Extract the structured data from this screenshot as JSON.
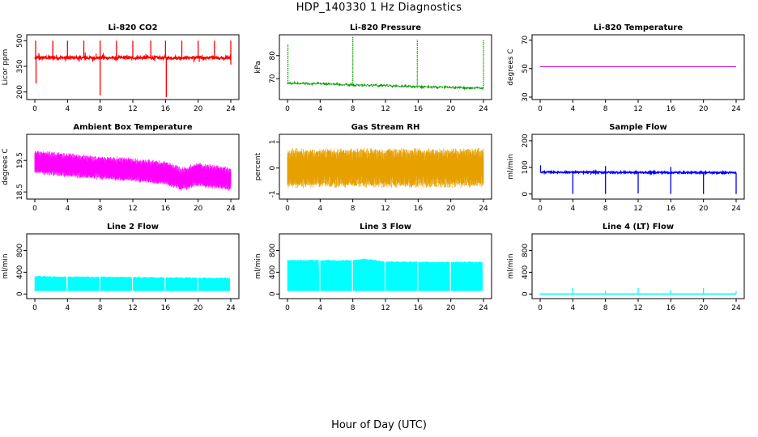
{
  "figure": {
    "title": "HDP_140330  1 Hz Diagnostics",
    "xlabel": "Hour of Day (UTC)"
  },
  "chart_data": [
    {
      "type": "line",
      "title": "Li-820 CO2",
      "ylabel": "Licor ppm",
      "color": "#ff0000",
      "xlim": [
        0,
        24
      ],
      "ylim": [
        170,
        520
      ],
      "xticks": [
        0,
        4,
        8,
        12,
        16,
        20,
        24
      ],
      "yticks": [
        200,
        350,
        500
      ],
      "baseline": 400,
      "noise": 8,
      "style": "spiky",
      "spikes_up": [
        [
          0.1,
          500
        ],
        [
          2.2,
          500
        ],
        [
          4.0,
          500
        ],
        [
          6.0,
          500
        ],
        [
          8.0,
          500
        ],
        [
          10.0,
          500
        ],
        [
          12.0,
          500
        ],
        [
          14.2,
          500
        ],
        [
          16.0,
          500
        ],
        [
          18.0,
          500
        ],
        [
          20.0,
          500
        ],
        [
          22.0,
          500
        ],
        [
          24.0,
          500
        ]
      ],
      "spikes_down": [
        [
          0.15,
          250
        ],
        [
          8.0,
          180
        ],
        [
          16.1,
          170
        ],
        [
          24.0,
          360
        ]
      ]
    },
    {
      "type": "line",
      "title": "Li-820 Pressure",
      "ylabel": "kPa",
      "color": "#00a000",
      "xlim": [
        0,
        24
      ],
      "ylim": [
        62,
        88
      ],
      "xticks": [
        0,
        4,
        8,
        12,
        16,
        20,
        24
      ],
      "yticks": [
        70,
        80
      ],
      "trend": [
        [
          0,
          68
        ],
        [
          4,
          67.8
        ],
        [
          8,
          67.3
        ],
        [
          12,
          67
        ],
        [
          16,
          66.5
        ],
        [
          20,
          66.2
        ],
        [
          24,
          66
        ]
      ],
      "noise": 0.3,
      "style": "dotted",
      "spikes_up": [
        [
          0.05,
          85
        ],
        [
          8.0,
          88
        ],
        [
          15.9,
          87
        ],
        [
          24.0,
          87
        ]
      ]
    },
    {
      "type": "line",
      "title": "Li-820 Temperature",
      "ylabel": "degrees C",
      "color": "#cc00cc",
      "xlim": [
        0,
        24
      ],
      "ylim": [
        30,
        72
      ],
      "xticks": [
        0,
        4,
        8,
        12,
        16,
        20,
        24
      ],
      "yticks": [
        30,
        50,
        70
      ],
      "trend": [
        [
          0,
          51.3
        ],
        [
          24,
          51.3
        ]
      ],
      "noise": 0,
      "style": "flat"
    },
    {
      "type": "line",
      "title": "Ambient Box Temperature",
      "ylabel": "degrees C",
      "color": "#ff00ff",
      "xlim": [
        0,
        24
      ],
      "ylim": [
        18.35,
        20.25
      ],
      "xticks": [
        0,
        4,
        8,
        12,
        16,
        20,
        24
      ],
      "yticks": [
        18.5,
        19.5
      ],
      "trend": [
        [
          0,
          19.45
        ],
        [
          6,
          19.3
        ],
        [
          12,
          19.2
        ],
        [
          16,
          19.1
        ],
        [
          18,
          18.9
        ],
        [
          20,
          19.05
        ],
        [
          24,
          18.9
        ]
      ],
      "band": 0.35,
      "style": "band"
    },
    {
      "type": "line",
      "title": "Gas Stream RH",
      "ylabel": "percent",
      "color": "#e6a000",
      "xlim": [
        0,
        24
      ],
      "ylim": [
        -1.1,
        1.2
      ],
      "xticks": [
        0,
        4,
        8,
        12,
        16,
        20,
        24
      ],
      "yticks": [
        -1.0,
        0.0,
        1.0
      ],
      "trend": [
        [
          0,
          0
        ],
        [
          24,
          0
        ]
      ],
      "band": 0.7,
      "style": "band"
    },
    {
      "type": "line",
      "title": "Sample Flow",
      "ylabel": "ml/min",
      "color": "#0000ff",
      "xlim": [
        0,
        24
      ],
      "ylim": [
        -10,
        215
      ],
      "xticks": [
        0,
        4,
        8,
        12,
        16,
        20,
        24
      ],
      "yticks": [
        0,
        100,
        200
      ],
      "trend": [
        [
          0,
          82
        ],
        [
          24,
          80
        ]
      ],
      "noise": 3,
      "style": "spiky",
      "spikes_up": [
        [
          0.05,
          108
        ],
        [
          8.0,
          105
        ],
        [
          16.0,
          102
        ]
      ],
      "spikes_down": [
        [
          4.0,
          0
        ],
        [
          8.0,
          0
        ],
        [
          12.0,
          2
        ],
        [
          16.0,
          0
        ],
        [
          20.0,
          0
        ],
        [
          24.0,
          0
        ]
      ]
    },
    {
      "type": "line",
      "title": "Line 2 Flow",
      "ylabel": "ml/min",
      "color": "#00ffff",
      "xlim": [
        0,
        24
      ],
      "ylim": [
        -40,
        1060
      ],
      "xticks": [
        0,
        4,
        8,
        12,
        16,
        20,
        24
      ],
      "yticks": [
        0,
        400,
        800
      ],
      "trend": [
        [
          0,
          320
        ],
        [
          24,
          290
        ]
      ],
      "lower": 60,
      "gaps": [
        4,
        8,
        12,
        16,
        20,
        24
      ],
      "style": "block"
    },
    {
      "type": "line",
      "title": "Line 3 Flow",
      "ylabel": "ml/min",
      "color": "#00ffff",
      "xlim": [
        0,
        24
      ],
      "ylim": [
        -40,
        1060
      ],
      "xticks": [
        0,
        4,
        8,
        12,
        16,
        20,
        24
      ],
      "yticks": [
        0,
        400,
        800
      ],
      "trend": [
        [
          0,
          620
        ],
        [
          8,
          615
        ],
        [
          9.5,
          640
        ],
        [
          12,
          590
        ],
        [
          24,
          580
        ]
      ],
      "lower": 60,
      "gaps": [
        4,
        8,
        12,
        16,
        20,
        24
      ],
      "style": "block"
    },
    {
      "type": "line",
      "title": "Line 4 (LT) Flow",
      "ylabel": "ml/min",
      "color": "#00ffff",
      "xlim": [
        0,
        24
      ],
      "ylim": [
        -40,
        1060
      ],
      "xticks": [
        0,
        4,
        8,
        12,
        16,
        20,
        24
      ],
      "yticks": [
        0,
        400,
        800
      ],
      "trend": [
        [
          0,
          0
        ],
        [
          24,
          0
        ]
      ],
      "noise": 0,
      "style": "spiky",
      "spikes_up": [
        [
          4.0,
          110
        ],
        [
          8.0,
          60
        ],
        [
          12.0,
          110
        ],
        [
          16.0,
          70
        ],
        [
          20.0,
          110
        ],
        [
          24.0,
          50
        ]
      ]
    }
  ]
}
